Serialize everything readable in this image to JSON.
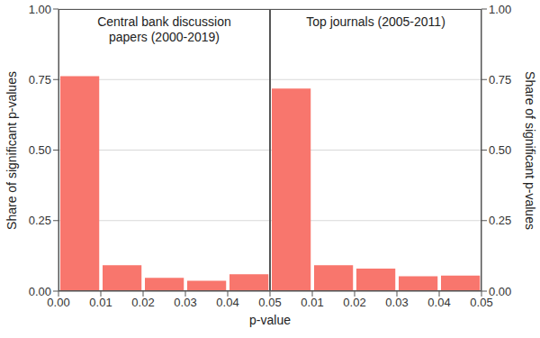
{
  "chart_data": [
    {
      "type": "histogram",
      "title": "Central bank discussion papers (2000-2019)",
      "bins": [
        0,
        0.01,
        0.02,
        0.03,
        0.04,
        0.05
      ],
      "values": [
        0.762,
        0.092,
        0.047,
        0.037,
        0.06
      ],
      "color": "#f8766d",
      "xlabel": "p-value",
      "ylabel": "Share of significant p-values",
      "xlim": [
        0,
        0.05
      ],
      "xticks": [
        {
          "value": 0,
          "label": "0.00"
        },
        0.01,
        0.02,
        0.03,
        0.04,
        0.05
      ],
      "ylim": [
        0,
        1
      ],
      "yticks": [
        {
          "value": 0,
          "label": "0.00"
        },
        0.25,
        {
          "value": 0.5,
          "label": "0.50"
        },
        0.75,
        {
          "value": 1,
          "label": "1.00"
        }
      ],
      "grid": true
    },
    {
      "type": "histogram",
      "title": "Top journals (2005-2011)",
      "bins": [
        0,
        0.01,
        0.02,
        0.03,
        0.04,
        0.05
      ],
      "values": [
        0.718,
        0.092,
        0.08,
        0.053,
        0.055
      ],
      "color": "#f8766d",
      "ylabel": "Share of significant p-values",
      "xlim": [
        0,
        0.05
      ],
      "xticks": [
        0.01,
        0.02,
        0.03,
        0.04,
        0.05
      ],
      "ylim": [
        0,
        1
      ],
      "yticks": [
        {
          "value": 0,
          "label": "0.00"
        },
        0.25,
        {
          "value": 0.5,
          "label": "0.50"
        },
        0.75,
        {
          "value": 1,
          "label": "1.00"
        }
      ],
      "grid": true
    }
  ]
}
